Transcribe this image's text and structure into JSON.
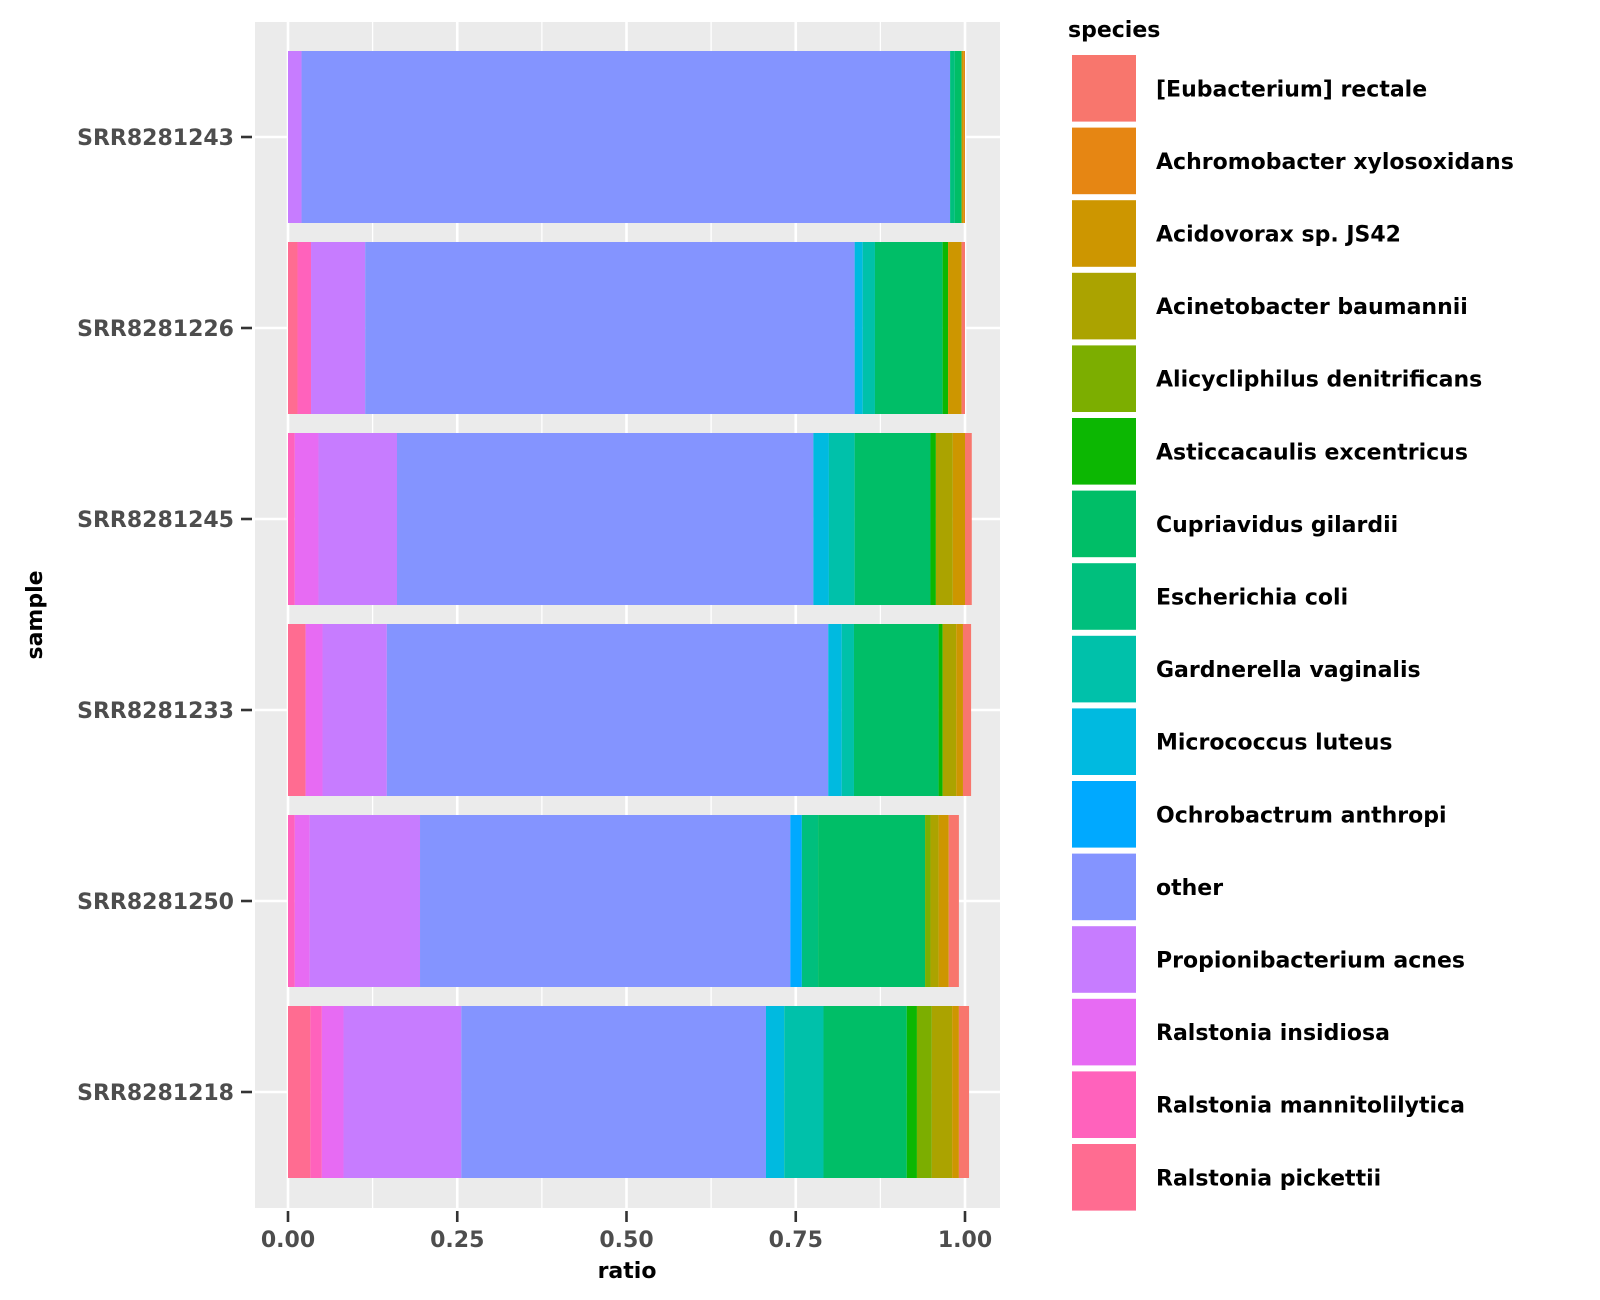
{
  "chart_data": {
    "type": "bar",
    "orientation": "horizontal",
    "stacked": true,
    "xlabel": "ratio",
    "ylabel": "sample",
    "xlim": [
      0,
      1
    ],
    "xticks": [
      "0.00",
      "0.25",
      "0.50",
      "0.75",
      "1.00"
    ],
    "grid": true,
    "legend_position": "right",
    "legend_title": "species",
    "categories": [
      "SRR8281243",
      "SRR8281226",
      "SRR8281245",
      "SRR8281233",
      "SRR8281250",
      "SRR8281218"
    ],
    "series": [
      {
        "name": "Ralstonia pickettii",
        "color": "#FF6C91",
        "values": [
          0.0,
          0.014,
          0.0,
          0.026,
          0.0,
          0.033
        ]
      },
      {
        "name": "Ralstonia mannitolilytica",
        "color": "#FF62BC",
        "values": [
          0.0,
          0.02,
          0.01,
          0.0,
          0.01,
          0.017
        ]
      },
      {
        "name": "Ralstonia insidiosa",
        "color": "#E76BF3",
        "values": [
          0.0,
          0.0,
          0.035,
          0.025,
          0.022,
          0.032
        ]
      },
      {
        "name": "Propionibacterium acnes",
        "color": "#C77CFF",
        "values": [
          0.02,
          0.08,
          0.116,
          0.095,
          0.163,
          0.174
        ]
      },
      {
        "name": "other",
        "color": "#8494FF",
        "values": [
          0.958,
          0.723,
          0.615,
          0.652,
          0.547,
          0.45
        ]
      },
      {
        "name": "Ochrobactrum anthropi",
        "color": "#00A9FF",
        "values": [
          0.0,
          0.0,
          0.0,
          0.0,
          0.017,
          0.0
        ]
      },
      {
        "name": "Micrococcus luteus",
        "color": "#00BAE0",
        "values": [
          0.0,
          0.012,
          0.023,
          0.02,
          0.0,
          0.027
        ]
      },
      {
        "name": "Gardnerella vaginalis",
        "color": "#00C1AA",
        "values": [
          0.0,
          0.018,
          0.038,
          0.018,
          0.0,
          0.058
        ]
      },
      {
        "name": "Escherichia coli",
        "color": "#00BF7D",
        "values": [
          0.007,
          0.0,
          0.0,
          0.0,
          0.024,
          0.0
        ]
      },
      {
        "name": "Cupriavidus gilardii",
        "color": "#00BE67",
        "values": [
          0.01,
          0.1,
          0.112,
          0.125,
          0.158,
          0.123
        ]
      },
      {
        "name": "Asticcacaulis excentricus",
        "color": "#0CB702",
        "values": [
          0.0,
          0.008,
          0.008,
          0.006,
          0.0,
          0.015
        ]
      },
      {
        "name": "Alicycliphilus denitrificans",
        "color": "#7CAE00",
        "values": [
          0.0,
          0.0,
          0.0,
          0.0,
          0.008,
          0.022
        ]
      },
      {
        "name": "Acinetobacter baumannii",
        "color": "#ABA300",
        "values": [
          0.0,
          0.0,
          0.025,
          0.02,
          0.012,
          0.03
        ]
      },
      {
        "name": "Acidovorax sp. JS42",
        "color": "#CD9600",
        "values": [
          0.003,
          0.02,
          0.018,
          0.01,
          0.015,
          0.01
        ]
      },
      {
        "name": "Achromobacter xylosoxidans",
        "color": "#E68613",
        "values": [
          0.002,
          0.0,
          0.0,
          0.0,
          0.0,
          0.0
        ]
      },
      {
        "name": "[Eubacterium] rectale",
        "color": "#F8766D",
        "values": [
          0.0,
          0.005,
          0.01,
          0.012,
          0.015,
          0.015
        ]
      }
    ]
  },
  "legend_order": [
    "[Eubacterium] rectale",
    "Achromobacter xylosoxidans",
    "Acidovorax sp. JS42",
    "Acinetobacter baumannii",
    "Alicycliphilus denitrificans",
    "Asticcacaulis excentricus",
    "Cupriavidus gilardii",
    "Escherichia coli",
    "Gardnerella vaginalis",
    "Micrococcus luteus",
    "Ochrobactrum anthropi",
    "other",
    "Propionibacterium acnes",
    "Ralstonia insidiosa",
    "Ralstonia mannitolilytica",
    "Ralstonia pickettii"
  ]
}
